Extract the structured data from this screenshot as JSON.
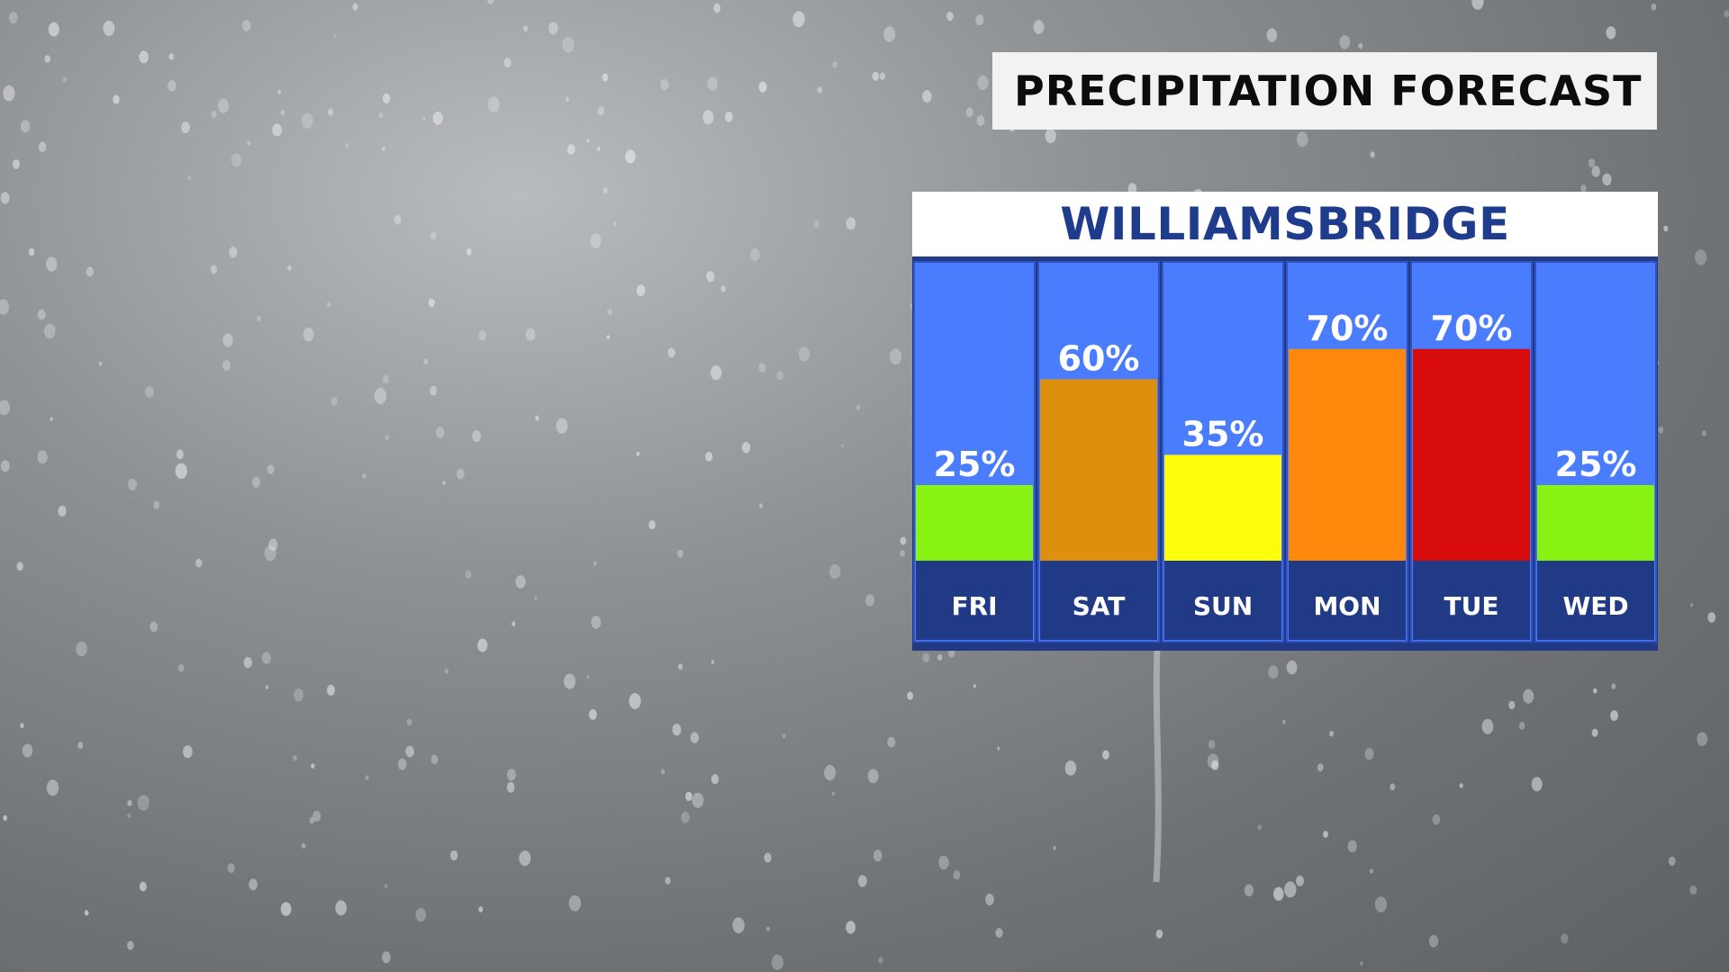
{
  "header": {
    "title": "PRECIPITATION FORECAST"
  },
  "panel": {
    "location": "WILLIAMSBRIDGE"
  },
  "colors": {
    "column_bg": "#4a7dfd",
    "day_strip": "#203a86",
    "border": "#2f52c4",
    "header_text": "#1f3b8c"
  },
  "chart_data": {
    "type": "bar",
    "categories": [
      "FRI",
      "SAT",
      "SUN",
      "MON",
      "TUE",
      "WED"
    ],
    "values": [
      25,
      60,
      35,
      70,
      70,
      25
    ],
    "value_labels": [
      "25%",
      "60%",
      "35%",
      "70%",
      "70%",
      "25%"
    ],
    "bar_colors": [
      "#88f312",
      "#dc900c",
      "#fdfd0b",
      "#fd880c",
      "#d80c0c",
      "#88f312"
    ],
    "title": "WILLIAMSBRIDGE",
    "ylim": [
      0,
      100
    ],
    "grid": false,
    "legend": "none"
  }
}
